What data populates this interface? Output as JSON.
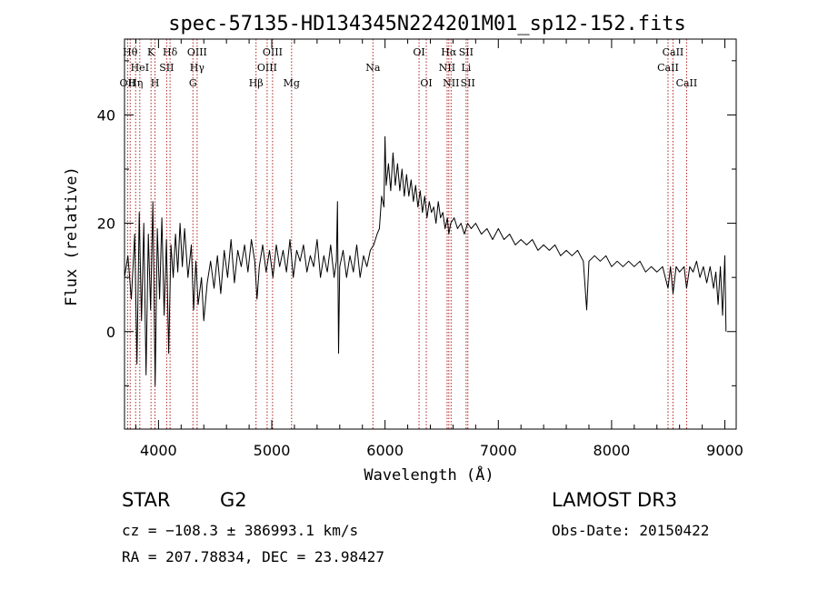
{
  "chart_data": {
    "type": "line",
    "title": "spec-57135-HD134345N224201M01_sp12-152.fits",
    "xlabel": "Wavelength (Å)",
    "ylabel": "Flux (relative)",
    "xlim": [
      3700,
      9100
    ],
    "ylim": [
      -18,
      54
    ],
    "xticks": [
      4000,
      5000,
      6000,
      7000,
      8000,
      9000
    ],
    "yticks": [
      0,
      20,
      40
    ],
    "xtick_labels": [
      "4000",
      "5000",
      "6000",
      "7000",
      "8000",
      "9000"
    ],
    "ytick_labels": [
      "0",
      "20",
      "40"
    ],
    "x_minor_step": 200,
    "y_minor_step": 10,
    "grid": false,
    "series": [
      {
        "name": "spectrum",
        "color": "#000000",
        "points": [
          [
            3700,
            10
          ],
          [
            3730,
            14
          ],
          [
            3760,
            6
          ],
          [
            3790,
            18
          ],
          [
            3810,
            -6
          ],
          [
            3830,
            22
          ],
          [
            3850,
            2
          ],
          [
            3870,
            20
          ],
          [
            3890,
            -8
          ],
          [
            3910,
            18
          ],
          [
            3930,
            4
          ],
          [
            3950,
            24
          ],
          [
            3970,
            -10
          ],
          [
            3990,
            19
          ],
          [
            4010,
            6
          ],
          [
            4030,
            21
          ],
          [
            4050,
            3
          ],
          [
            4070,
            17
          ],
          [
            4090,
            -4
          ],
          [
            4110,
            16
          ],
          [
            4130,
            10
          ],
          [
            4150,
            18
          ],
          [
            4170,
            11
          ],
          [
            4190,
            20
          ],
          [
            4210,
            12
          ],
          [
            4230,
            19
          ],
          [
            4260,
            10
          ],
          [
            4290,
            16
          ],
          [
            4310,
            4
          ],
          [
            4330,
            13
          ],
          [
            4350,
            5
          ],
          [
            4380,
            10
          ],
          [
            4400,
            2
          ],
          [
            4430,
            9
          ],
          [
            4460,
            13
          ],
          [
            4490,
            8
          ],
          [
            4520,
            14
          ],
          [
            4550,
            7
          ],
          [
            4580,
            15
          ],
          [
            4610,
            10
          ],
          [
            4640,
            17
          ],
          [
            4670,
            9
          ],
          [
            4700,
            15
          ],
          [
            4730,
            12
          ],
          [
            4760,
            16
          ],
          [
            4790,
            11
          ],
          [
            4820,
            17
          ],
          [
            4850,
            13
          ],
          [
            4870,
            6
          ],
          [
            4890,
            12
          ],
          [
            4920,
            16
          ],
          [
            4950,
            11
          ],
          [
            4980,
            15
          ],
          [
            5010,
            10
          ],
          [
            5040,
            16
          ],
          [
            5070,
            12
          ],
          [
            5100,
            15
          ],
          [
            5130,
            11
          ],
          [
            5160,
            17
          ],
          [
            5190,
            10
          ],
          [
            5220,
            15
          ],
          [
            5250,
            13
          ],
          [
            5280,
            16
          ],
          [
            5310,
            11
          ],
          [
            5340,
            14
          ],
          [
            5370,
            12
          ],
          [
            5400,
            17
          ],
          [
            5430,
            10
          ],
          [
            5460,
            14
          ],
          [
            5490,
            11
          ],
          [
            5520,
            16
          ],
          [
            5550,
            10
          ],
          [
            5570,
            13
          ],
          [
            5580,
            24
          ],
          [
            5590,
            -4
          ],
          [
            5600,
            12
          ],
          [
            5630,
            15
          ],
          [
            5660,
            10
          ],
          [
            5690,
            14
          ],
          [
            5720,
            11
          ],
          [
            5750,
            16
          ],
          [
            5780,
            10
          ],
          [
            5810,
            14
          ],
          [
            5840,
            12
          ],
          [
            5870,
            15
          ],
          [
            5900,
            16
          ],
          [
            5930,
            18
          ],
          [
            5950,
            19
          ],
          [
            5970,
            25
          ],
          [
            5990,
            23
          ],
          [
            6000,
            36
          ],
          [
            6010,
            27
          ],
          [
            6030,
            31
          ],
          [
            6050,
            26
          ],
          [
            6070,
            33
          ],
          [
            6090,
            27
          ],
          [
            6110,
            31
          ],
          [
            6130,
            26
          ],
          [
            6150,
            30
          ],
          [
            6170,
            25
          ],
          [
            6190,
            29
          ],
          [
            6210,
            25
          ],
          [
            6230,
            28
          ],
          [
            6250,
            24
          ],
          [
            6270,
            27
          ],
          [
            6290,
            23
          ],
          [
            6310,
            26
          ],
          [
            6330,
            22
          ],
          [
            6350,
            25
          ],
          [
            6370,
            21
          ],
          [
            6390,
            24
          ],
          [
            6410,
            22
          ],
          [
            6430,
            23
          ],
          [
            6450,
            20
          ],
          [
            6470,
            24
          ],
          [
            6490,
            21
          ],
          [
            6510,
            22
          ],
          [
            6530,
            19
          ],
          [
            6550,
            21
          ],
          [
            6563,
            18
          ],
          [
            6580,
            20
          ],
          [
            6610,
            21
          ],
          [
            6640,
            19
          ],
          [
            6670,
            20
          ],
          [
            6700,
            18
          ],
          [
            6730,
            20
          ],
          [
            6760,
            19
          ],
          [
            6800,
            20
          ],
          [
            6850,
            18
          ],
          [
            6900,
            19
          ],
          [
            6950,
            17
          ],
          [
            7000,
            19
          ],
          [
            7050,
            17
          ],
          [
            7100,
            18
          ],
          [
            7150,
            16
          ],
          [
            7200,
            17
          ],
          [
            7250,
            16
          ],
          [
            7300,
            17
          ],
          [
            7350,
            15
          ],
          [
            7400,
            16
          ],
          [
            7450,
            15
          ],
          [
            7500,
            16
          ],
          [
            7550,
            14
          ],
          [
            7600,
            15
          ],
          [
            7650,
            14
          ],
          [
            7700,
            15
          ],
          [
            7750,
            13
          ],
          [
            7780,
            4
          ],
          [
            7800,
            13
          ],
          [
            7850,
            14
          ],
          [
            7900,
            13
          ],
          [
            7950,
            14
          ],
          [
            8000,
            12
          ],
          [
            8050,
            13
          ],
          [
            8100,
            12
          ],
          [
            8150,
            13
          ],
          [
            8200,
            12
          ],
          [
            8250,
            13
          ],
          [
            8300,
            11
          ],
          [
            8350,
            12
          ],
          [
            8400,
            11
          ],
          [
            8450,
            12
          ],
          [
            8498,
            8
          ],
          [
            8520,
            12
          ],
          [
            8542,
            7
          ],
          [
            8570,
            12
          ],
          [
            8600,
            11
          ],
          [
            8640,
            12
          ],
          [
            8662,
            8
          ],
          [
            8690,
            12
          ],
          [
            8720,
            11
          ],
          [
            8750,
            13
          ],
          [
            8780,
            10
          ],
          [
            8810,
            12
          ],
          [
            8840,
            9
          ],
          [
            8870,
            12
          ],
          [
            8900,
            8
          ],
          [
            8920,
            11
          ],
          [
            8940,
            5
          ],
          [
            8960,
            12
          ],
          [
            8980,
            3
          ],
          [
            9000,
            14
          ],
          [
            9010,
            0
          ]
        ]
      }
    ],
    "lines": [
      {
        "name": "OII",
        "wavelength": 3727,
        "labels": [
          {
            "text": "OII",
            "row": 2
          }
        ]
      },
      {
        "name": "Hθ",
        "wavelength": 3750,
        "labels": [
          {
            "text": "Hθ",
            "row": 0
          }
        ]
      },
      {
        "name": "Hη",
        "wavelength": 3798,
        "labels": [
          {
            "text": "Hη",
            "row": 2
          }
        ]
      },
      {
        "name": "HeI",
        "wavelength": 3835,
        "labels": [
          {
            "text": "HeI",
            "row": 1
          }
        ]
      },
      {
        "name": "K",
        "wavelength": 3934,
        "labels": [
          {
            "text": "K",
            "row": 0
          }
        ]
      },
      {
        "name": "H",
        "wavelength": 3969,
        "labels": [
          {
            "text": "H",
            "row": 2
          }
        ]
      },
      {
        "name": "SII",
        "wavelength": 4072,
        "labels": [
          {
            "text": "SII",
            "row": 1
          }
        ]
      },
      {
        "name": "Hδ",
        "wavelength": 4102,
        "labels": [
          {
            "text": "Hδ",
            "row": 0
          }
        ]
      },
      {
        "name": "G",
        "wavelength": 4304,
        "labels": [
          {
            "text": "G",
            "row": 2
          }
        ]
      },
      {
        "name": "Hγ",
        "wavelength": 4341,
        "labels": [
          {
            "text": "OIII",
            "row": 0
          },
          {
            "text": "Hγ",
            "row": 1
          }
        ]
      },
      {
        "name": "Hβ",
        "wavelength": 4861,
        "labels": [
          {
            "text": "Hβ",
            "row": 2
          }
        ]
      },
      {
        "name": "OIII-4959",
        "wavelength": 4959,
        "labels": [
          {
            "text": "OIII",
            "row": 1
          }
        ]
      },
      {
        "name": "OIII-5007",
        "wavelength": 5007,
        "labels": [
          {
            "text": "OIII",
            "row": 0
          }
        ]
      },
      {
        "name": "Mg",
        "wavelength": 5175,
        "labels": [
          {
            "text": "Mg",
            "row": 2
          }
        ]
      },
      {
        "name": "Na",
        "wavelength": 5893,
        "labels": [
          {
            "text": "Na",
            "row": 1
          }
        ]
      },
      {
        "name": "OI-6300",
        "wavelength": 6300,
        "labels": [
          {
            "text": "OI",
            "row": 0
          }
        ]
      },
      {
        "name": "OI-6364",
        "wavelength": 6364,
        "labels": [
          {
            "text": "OI",
            "row": 2
          }
        ]
      },
      {
        "name": "NII-6548",
        "wavelength": 6548,
        "labels": [
          {
            "text": "NII",
            "row": 1
          }
        ]
      },
      {
        "name": "Hα",
        "wavelength": 6563,
        "labels": [
          {
            "text": "Hα",
            "row": 0
          }
        ]
      },
      {
        "name": "NII-6583",
        "wavelength": 6583,
        "labels": [
          {
            "text": "NII",
            "row": 2
          }
        ]
      },
      {
        "name": "SII-6716",
        "wavelength": 6716,
        "labels": [
          {
            "text": "SII",
            "row": 0
          },
          {
            "text": "Li",
            "row": 1
          }
        ]
      },
      {
        "name": "SII-6731",
        "wavelength": 6731,
        "labels": [
          {
            "text": "SII",
            "row": 2
          }
        ]
      },
      {
        "name": "CaII-8498",
        "wavelength": 8498,
        "labels": [
          {
            "text": "CaII",
            "row": 1
          }
        ]
      },
      {
        "name": "CaII-8542",
        "wavelength": 8542,
        "labels": [
          {
            "text": "CaII",
            "row": 0
          }
        ]
      },
      {
        "name": "CaII-8662",
        "wavelength": 8662,
        "labels": [
          {
            "text": "CaII",
            "row": 2
          }
        ]
      }
    ]
  },
  "info": {
    "object_class": "STAR",
    "subclass": "G2",
    "survey": "LAMOST DR3",
    "cz_line": "cz = −108.3 ± 386993.1 km/s",
    "obs_date_line": "Obs-Date: 20150422",
    "coords_line": "RA = 207.78834, DEC =  23.98427"
  }
}
